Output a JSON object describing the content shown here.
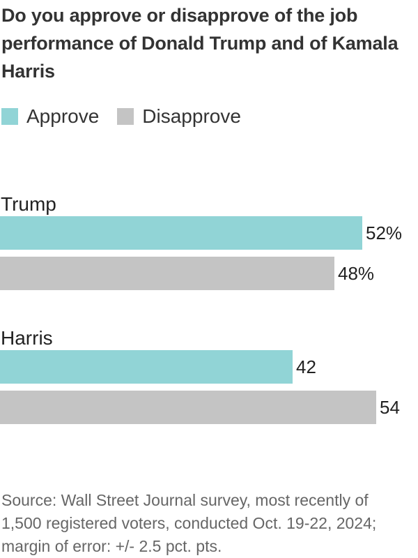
{
  "colors": {
    "approve": "#91d4d6",
    "disapprove": "#c4c4c4",
    "text": "#222222"
  },
  "chart_data": {
    "type": "bar",
    "orientation": "horizontal",
    "title": "Do you approve or disapprove of the job performance of Donald Trump and of Kamala Harris",
    "categories": [
      "Trump",
      "Harris"
    ],
    "series": [
      {
        "name": "Approve",
        "values": [
          52,
          42
        ],
        "labels": [
          "52%",
          "42"
        ]
      },
      {
        "name": "Disapprove",
        "values": [
          48,
          54
        ],
        "labels": [
          "48%",
          "54"
        ]
      }
    ],
    "xlim": [
      0,
      60
    ],
    "xlabel": "",
    "ylabel": "",
    "grid": false,
    "legend": "top-left",
    "source": "Source: Wall Street Journal survey, most recently of 1,500 registered voters, conducted Oct. 19-22, 2024; margin of error: +/- 2.5 pct. pts."
  }
}
